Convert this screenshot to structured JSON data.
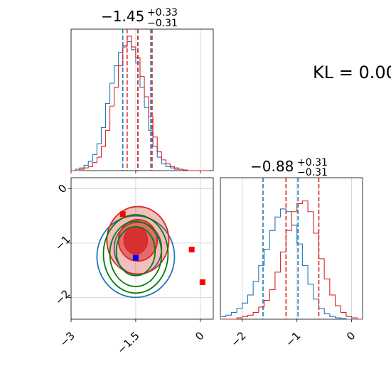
{
  "colors": {
    "series_a": "#1f77b4",
    "series_b": "#d62728",
    "fit": "#008000",
    "marker_a": "#0000ff",
    "marker_b": "#ff0000",
    "grid": "#cfcfcf"
  },
  "kl_text": "KL = 0.00",
  "chart_data": [
    {
      "panel": "top-left",
      "type": "line",
      "subtype": "step-histogram",
      "title_value": "−1.45",
      "title_plus": "+0.33",
      "title_minus": "−0.31",
      "xlim": [
        -3.0,
        0.3
      ],
      "x_ticks": [
        -3.0,
        -1.5,
        0.0
      ],
      "grid": true,
      "bins_x": [
        -3.0,
        -2.9,
        -2.8,
        -2.7,
        -2.6,
        -2.5,
        -2.4,
        -2.3,
        -2.2,
        -2.1,
        -2.0,
        -1.9,
        -1.8,
        -1.7,
        -1.6,
        -1.5,
        -1.4,
        -1.3,
        -1.2,
        -1.1,
        -1.0,
        -0.9,
        -0.8,
        -0.7,
        -0.6,
        -0.5,
        -0.4,
        -0.3,
        -0.2,
        -0.1,
        0.0,
        0.1,
        0.2
      ],
      "series": [
        {
          "color_key": "series_a",
          "values": [
            0,
            0.01,
            0.02,
            0.04,
            0.07,
            0.12,
            0.2,
            0.32,
            0.5,
            0.65,
            0.78,
            0.88,
            0.93,
            0.96,
            0.9,
            0.8,
            0.62,
            0.47,
            0.3,
            0.18,
            0.1,
            0.05,
            0.03,
            0.02,
            0.01,
            0.01,
            0.005,
            0,
            0,
            0,
            0,
            0
          ],
          "quantile_lines": [
            -1.8,
            -1.45,
            -1.15
          ]
        },
        {
          "color_key": "series_b",
          "values": [
            0,
            0,
            0.01,
            0.02,
            0.03,
            0.06,
            0.1,
            0.18,
            0.3,
            0.48,
            0.62,
            0.78,
            0.92,
            1.0,
            0.92,
            0.84,
            0.7,
            0.55,
            0.4,
            0.25,
            0.14,
            0.08,
            0.05,
            0.03,
            0.02,
            0.01,
            0.005,
            0,
            0,
            0,
            0,
            0
          ],
          "quantile_lines": [
            -1.7,
            -1.45,
            -1.12
          ]
        }
      ]
    },
    {
      "panel": "bottom-right",
      "type": "line",
      "subtype": "step-histogram",
      "title_value": "−0.88",
      "title_plus": "+0.31",
      "title_minus": "−0.31",
      "xlim": [
        -2.4,
        0.2
      ],
      "x_ticks": [
        -2,
        -1,
        0
      ],
      "grid": true,
      "bins_x": [
        -2.4,
        -2.3,
        -2.2,
        -2.1,
        -2.0,
        -1.9,
        -1.8,
        -1.7,
        -1.6,
        -1.5,
        -1.4,
        -1.3,
        -1.2,
        -1.1,
        -1.0,
        -0.9,
        -0.8,
        -0.7,
        -0.6,
        -0.5,
        -0.4,
        -0.3,
        -0.2,
        -0.1,
        0.0,
        0.1,
        0.2
      ],
      "series": [
        {
          "color_key": "series_a",
          "values": [
            0.02,
            0.03,
            0.05,
            0.08,
            0.12,
            0.18,
            0.28,
            0.4,
            0.52,
            0.66,
            0.76,
            0.82,
            0.8,
            0.7,
            0.56,
            0.4,
            0.26,
            0.15,
            0.08,
            0.04,
            0.02,
            0.01,
            0.005,
            0,
            0,
            0
          ],
          "quantile_lines": [
            -1.62,
            -0.98
          ]
        },
        {
          "color_key": "series_b",
          "values": [
            0,
            0,
            0,
            0.01,
            0.02,
            0.03,
            0.05,
            0.09,
            0.14,
            0.22,
            0.35,
            0.5,
            0.66,
            0.8,
            0.86,
            0.88,
            0.8,
            0.64,
            0.45,
            0.3,
            0.18,
            0.1,
            0.05,
            0.02,
            0.01,
            0
          ],
          "quantile_lines": [
            -1.2,
            -0.6
          ]
        }
      ]
    },
    {
      "panel": "bottom-left",
      "type": "scatter",
      "subtype": "2d-contour",
      "xlim": [
        -3.0,
        0.3
      ],
      "ylim": [
        -2.4,
        0.2
      ],
      "x_ticks": [
        -3.0,
        -1.5,
        0.0
      ],
      "y_ticks": [
        0,
        -1,
        -2
      ],
      "grid": true,
      "contours": [
        {
          "color_key": "series_a",
          "fill": false,
          "levels": [
            {
              "cx": -1.5,
              "cy": -1.25,
              "rx": 0.9,
              "ry": 0.75
            },
            {
              "cx": -1.45,
              "cy": -1.1,
              "rx": 0.55,
              "ry": 0.48
            }
          ]
        },
        {
          "color_key": "series_b",
          "fill": true,
          "levels": [
            {
              "cx": -1.45,
              "cy": -0.95,
              "rx": 0.72,
              "ry": 0.62
            },
            {
              "cx": -1.45,
              "cy": -0.95,
              "rx": 0.45,
              "ry": 0.38
            },
            {
              "cx": -1.5,
              "cy": -0.95,
              "rx": 0.27,
              "ry": 0.25
            }
          ]
        },
        {
          "color_key": "fit",
          "fill": false,
          "levels": [
            {
              "cx": -1.5,
              "cy": -1.2,
              "rx": 0.75,
              "ry": 0.72
            },
            {
              "cx": -1.5,
              "cy": -1.2,
              "rx": 0.6,
              "ry": 0.6
            },
            {
              "cx": -1.5,
              "cy": -1.15,
              "rx": 0.45,
              "ry": 0.45
            }
          ]
        }
      ],
      "markers": [
        {
          "color_key": "marker_a",
          "x": -1.5,
          "y": -1.27
        },
        {
          "color_key": "marker_b",
          "x": -1.8,
          "y": -0.47
        },
        {
          "color_key": "marker_b",
          "x": -0.2,
          "y": -1.12
        },
        {
          "color_key": "marker_b",
          "x": 0.05,
          "y": -1.72
        }
      ]
    }
  ]
}
